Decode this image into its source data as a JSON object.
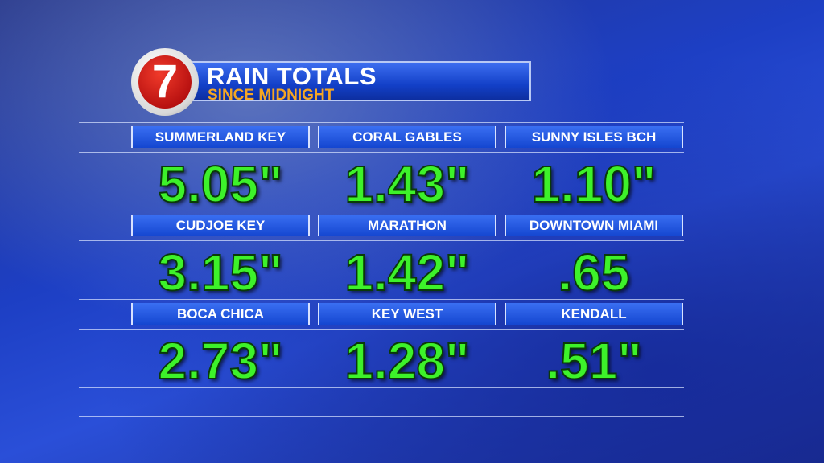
{
  "logo": "7",
  "header": {
    "title": "RAIN TOTALS",
    "subtitle": "SINCE MIDNIGHT"
  },
  "table": {
    "rows": [
      [
        {
          "location": "SUMMERLAND KEY",
          "total": "5.05\""
        },
        {
          "location": "CORAL GABLES",
          "total": "1.43\""
        },
        {
          "location": "SUNNY ISLES BCH",
          "total": "1.10\""
        }
      ],
      [
        {
          "location": "CUDJOE KEY",
          "total": "3.15\""
        },
        {
          "location": "MARATHON",
          "total": "1.42\""
        },
        {
          "location": "DOWNTOWN MIAMI",
          "total": ".65"
        }
      ],
      [
        {
          "location": "BOCA CHICA",
          "total": "2.73\""
        },
        {
          "location": "KEY WEST",
          "total": "1.28\""
        },
        {
          "location": "KENDALL",
          "total": ".51\""
        }
      ]
    ]
  }
}
